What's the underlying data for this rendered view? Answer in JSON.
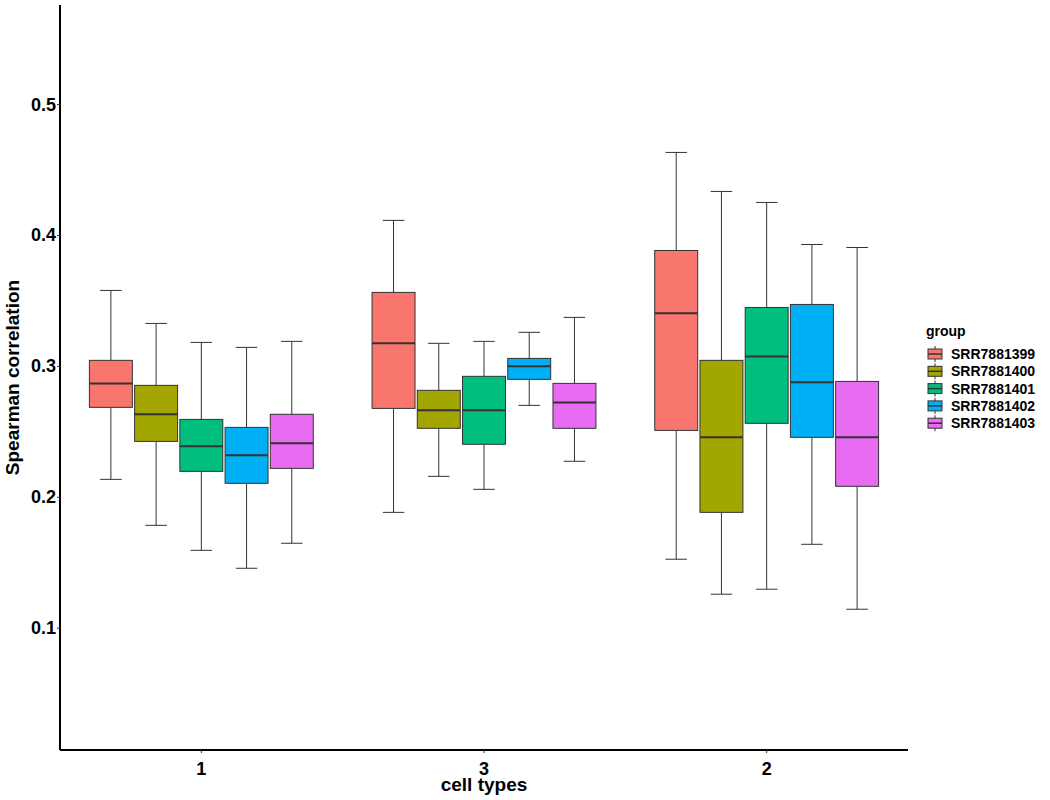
{
  "chart_data": {
    "type": "boxplot",
    "x_label": "cell types",
    "y_label": "Spearman correlation",
    "legend_title": "group",
    "legend": "right",
    "grid": false,
    "categories": [
      "1",
      "3",
      "2"
    ],
    "ylim": [
      0.007,
      0.576
    ],
    "yticks": [
      0.1,
      0.2,
      0.3,
      0.4,
      0.5
    ],
    "series": [
      {
        "name": "SRR7881399",
        "color": "#F8766D",
        "whisker_low": [
          0.2137,
          0.1885,
          0.1527
        ],
        "q1": [
          0.2687,
          0.2679,
          0.2511
        ],
        "median": [
          0.287,
          0.3176,
          0.3405
        ],
        "q3": [
          0.3046,
          0.3565,
          0.3885
        ],
        "whisker_high": [
          0.358,
          0.4115,
          0.4634
        ]
      },
      {
        "name": "SRR7881400",
        "color": "#A3A500",
        "whisker_low": [
          0.1786,
          0.216,
          0.126
        ],
        "q1": [
          0.2427,
          0.2527,
          0.1885
        ],
        "median": [
          0.2634,
          0.2664,
          0.2458
        ],
        "q3": [
          0.2855,
          0.2817,
          0.3046
        ],
        "whisker_high": [
          0.3328,
          0.3176,
          0.4336
        ]
      },
      {
        "name": "SRR7881401",
        "color": "#00BF7D",
        "whisker_low": [
          0.1595,
          0.2061,
          0.1298
        ],
        "q1": [
          0.2198,
          0.2405,
          0.2565
        ],
        "median": [
          0.2389,
          0.2664,
          0.3076
        ],
        "q3": [
          0.2595,
          0.2924,
          0.345
        ],
        "whisker_high": [
          0.3183,
          0.3191,
          0.4252
        ]
      },
      {
        "name": "SRR7881402",
        "color": "#00B0F6",
        "whisker_low": [
          0.1458,
          0.2702,
          0.1641
        ],
        "q1": [
          0.2107,
          0.2901,
          0.2458
        ],
        "median": [
          0.2321,
          0.3,
          0.2878
        ],
        "q3": [
          0.2534,
          0.3061,
          0.3473
        ],
        "whisker_high": [
          0.3145,
          0.326,
          0.3931
        ]
      },
      {
        "name": "SRR7881403",
        "color": "#E76BF3",
        "whisker_low": [
          0.1649,
          0.2275,
          0.1145
        ],
        "q1": [
          0.2221,
          0.2527,
          0.2084
        ],
        "median": [
          0.2412,
          0.2725,
          0.2458
        ],
        "q3": [
          0.2634,
          0.287,
          0.2885
        ],
        "whisker_high": [
          0.3191,
          0.3374,
          0.3908
        ]
      }
    ]
  }
}
